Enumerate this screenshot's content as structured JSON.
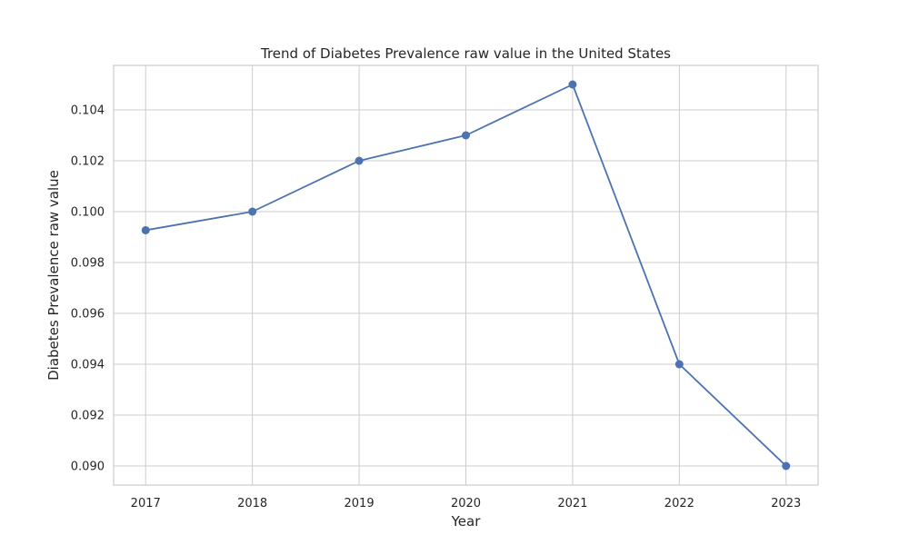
{
  "chart_data": {
    "type": "line",
    "title": "Trend of Diabetes Prevalence raw value in the United States",
    "xlabel": "Year",
    "ylabel": "Diabetes Prevalence raw value",
    "x": [
      2017,
      2018,
      2019,
      2020,
      2021,
      2022,
      2023
    ],
    "series": [
      {
        "values": [
          0.09927,
          0.1,
          0.102,
          0.103,
          0.105,
          0.094,
          0.09
        ],
        "color": "#4c72b0",
        "marker": "circle"
      }
    ],
    "x_ticks": [
      "2017",
      "2018",
      "2019",
      "2020",
      "2021",
      "2022",
      "2023"
    ],
    "y_ticks": [
      "0.090",
      "0.092",
      "0.094",
      "0.096",
      "0.098",
      "0.100",
      "0.102",
      "0.104"
    ],
    "xlim": [
      2016.7,
      2023.3
    ],
    "ylim": [
      0.08925,
      0.10575
    ],
    "grid": true,
    "legend": "none",
    "colors": {
      "grid": "#cccccc",
      "frame": "#cccccc",
      "text": "#262626"
    }
  }
}
